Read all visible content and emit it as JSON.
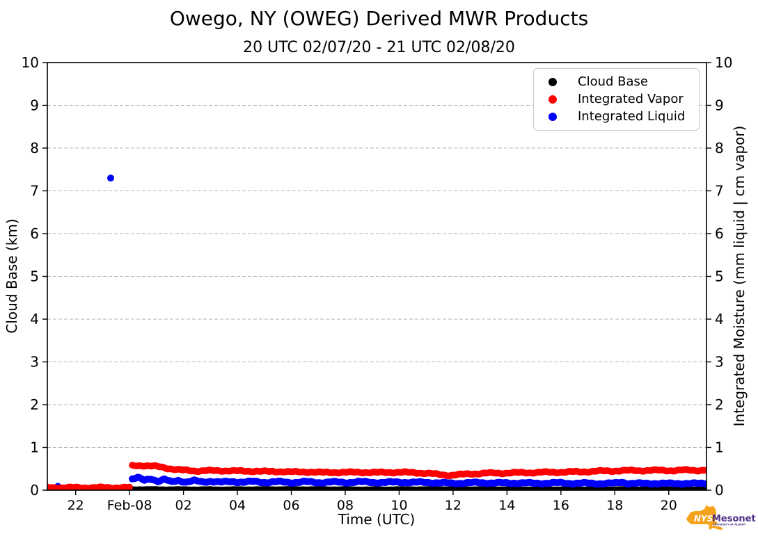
{
  "header": {
    "title": "Owego, NY (OWEG) Derived MWR Products",
    "subtitle": "20 UTC 02/07/20 - 21 UTC 02/08/20"
  },
  "axes": {
    "x": {
      "label": "Time (UTC)",
      "ticks": [
        {
          "t": -2,
          "label": "22"
        },
        {
          "t": 0,
          "label": "Feb-08"
        },
        {
          "t": 2,
          "label": "02"
        },
        {
          "t": 4,
          "label": "04"
        },
        {
          "t": 6,
          "label": "06"
        },
        {
          "t": 8,
          "label": "08"
        },
        {
          "t": 10,
          "label": "10"
        },
        {
          "t": 12,
          "label": "12"
        },
        {
          "t": 14,
          "label": "14"
        },
        {
          "t": 16,
          "label": "16"
        },
        {
          "t": 18,
          "label": "18"
        },
        {
          "t": 20,
          "label": "20"
        }
      ]
    },
    "y_left": {
      "label": "Cloud Base (km)",
      "ticks": [
        {
          "v": 0,
          "label": "0"
        },
        {
          "v": 1,
          "label": "1"
        },
        {
          "v": 2,
          "label": "2"
        },
        {
          "v": 3,
          "label": "3"
        },
        {
          "v": 4,
          "label": "4"
        },
        {
          "v": 5,
          "label": "5"
        },
        {
          "v": 6,
          "label": "6"
        },
        {
          "v": 7,
          "label": "7"
        },
        {
          "v": 8,
          "label": "8"
        },
        {
          "v": 9,
          "label": "9"
        },
        {
          "v": 10,
          "label": "10"
        }
      ]
    },
    "y_right": {
      "label": "Integrated Moisture (mm liquid | cm vapor)",
      "ticks": [
        {
          "v": 0,
          "label": "0"
        },
        {
          "v": 1,
          "label": "1"
        },
        {
          "v": 2,
          "label": "2"
        },
        {
          "v": 3,
          "label": "3"
        },
        {
          "v": 4,
          "label": "4"
        },
        {
          "v": 5,
          "label": "5"
        },
        {
          "v": 6,
          "label": "6"
        },
        {
          "v": 7,
          "label": "7"
        },
        {
          "v": 8,
          "label": "8"
        },
        {
          "v": 9,
          "label": "9"
        },
        {
          "v": 10,
          "label": "10"
        }
      ]
    }
  },
  "legend": {
    "items": [
      {
        "label": "Cloud Base",
        "color": "#000000"
      },
      {
        "label": "Integrated Vapor",
        "color": "#ff0000"
      },
      {
        "label": "Integrated Liquid",
        "color": "#0000ff"
      }
    ]
  },
  "logo": {
    "nys": "NYS",
    "mesonet": "Mesonet",
    "subtext": "UNIVERSITY AT ALBANY",
    "orange": "#f5a21c",
    "purple": "#4b2e83"
  },
  "chart_data": {
    "type": "scatter",
    "title": "Owego, NY (OWEG) Derived MWR Products",
    "subtitle": "20 UTC 02/07/20 - 21 UTC 02/08/20",
    "xlabel": "Time (UTC)",
    "ylabel_left": "Cloud Base (km)",
    "ylabel_right": "Integrated Moisture (mm liquid | cm vapor)",
    "x_unit": "hours relative to 02/08 00:00 UTC",
    "xlim": [
      -3.05,
      21.4
    ],
    "ylim": [
      0,
      10
    ],
    "grid": "horizontal dashed gridlines at integer values",
    "legend_position": "upper right",
    "series": [
      {
        "name": "Cloud Base",
        "color": "#000000",
        "marker_r": 3.5,
        "draw_order": 1,
        "points": [],
        "segments": [
          [
            [
              0.0,
              0.035
            ],
            [
              3,
              0.03
            ],
            [
              6,
              0.035
            ],
            [
              9,
              0.03
            ],
            [
              12,
              0.035
            ],
            [
              15,
              0.03
            ],
            [
              18,
              0.032
            ],
            [
              21.35,
              0.03
            ]
          ]
        ]
      },
      {
        "name": "Integrated Vapor",
        "color": "#ff0000",
        "marker_r": 4.8,
        "draw_order": 3,
        "points": [],
        "segments": [
          [
            [
              -3.03,
              0.06
            ],
            [
              0.0,
              0.06
            ]
          ],
          [
            [
              0.1,
              0.57
            ],
            [
              0.45,
              0.58
            ],
            [
              0.8,
              0.565
            ],
            [
              1.1,
              0.545
            ],
            [
              1.4,
              0.515
            ],
            [
              1.7,
              0.49
            ],
            [
              2.0,
              0.465
            ],
            [
              2.4,
              0.45
            ],
            [
              2.8,
              0.46
            ],
            [
              3.2,
              0.45
            ],
            [
              3.7,
              0.46
            ],
            [
              4.2,
              0.44
            ],
            [
              4.7,
              0.45
            ],
            [
              5.2,
              0.43
            ],
            [
              5.7,
              0.44
            ],
            [
              6.2,
              0.42
            ],
            [
              6.7,
              0.43
            ],
            [
              7.2,
              0.41
            ],
            [
              7.7,
              0.42
            ],
            [
              8.2,
              0.415
            ],
            [
              8.7,
              0.42
            ],
            [
              9.2,
              0.41
            ],
            [
              9.7,
              0.42
            ],
            [
              10.2,
              0.415
            ],
            [
              10.7,
              0.41
            ],
            [
              11.1,
              0.39
            ],
            [
              11.5,
              0.365
            ],
            [
              11.9,
              0.35
            ],
            [
              12.3,
              0.365
            ],
            [
              12.7,
              0.385
            ],
            [
              13.2,
              0.395
            ],
            [
              13.7,
              0.4
            ],
            [
              14.2,
              0.405
            ],
            [
              14.7,
              0.41
            ],
            [
              15.2,
              0.415
            ],
            [
              15.7,
              0.42
            ],
            [
              16.2,
              0.425
            ],
            [
              16.7,
              0.43
            ],
            [
              17.2,
              0.44
            ],
            [
              17.7,
              0.45
            ],
            [
              18.2,
              0.455
            ],
            [
              18.7,
              0.46
            ],
            [
              19.2,
              0.46
            ],
            [
              19.7,
              0.465
            ],
            [
              20.2,
              0.46
            ],
            [
              20.7,
              0.47
            ],
            [
              21.1,
              0.465
            ],
            [
              21.35,
              0.47
            ]
          ]
        ]
      },
      {
        "name": "Integrated Liquid",
        "color": "#0000ff",
        "marker_r": 5,
        "draw_order": 2,
        "points": [
          [
            -2.66,
            0.09
          ],
          [
            -0.7,
            7.3
          ]
        ],
        "segments": [
          [
            [
              0.1,
              0.26
            ],
            [
              0.3,
              0.29
            ],
            [
              0.55,
              0.23
            ],
            [
              0.8,
              0.27
            ],
            [
              1.05,
              0.21
            ],
            [
              1.3,
              0.25
            ],
            [
              1.55,
              0.19
            ],
            [
              1.8,
              0.23
            ],
            [
              2.1,
              0.19
            ],
            [
              2.4,
              0.22
            ],
            [
              2.7,
              0.19
            ],
            [
              3.0,
              0.21
            ],
            [
              3.4,
              0.185
            ],
            [
              3.8,
              0.2
            ],
            [
              4.2,
              0.19
            ],
            [
              4.6,
              0.2
            ],
            [
              5.0,
              0.185
            ],
            [
              5.5,
              0.195
            ],
            [
              6.0,
              0.18
            ],
            [
              6.5,
              0.195
            ],
            [
              7.0,
              0.18
            ],
            [
              7.5,
              0.19
            ],
            [
              8.0,
              0.18
            ],
            [
              8.5,
              0.195
            ],
            [
              9.0,
              0.185
            ],
            [
              9.5,
              0.18
            ],
            [
              10.0,
              0.19
            ],
            [
              10.5,
              0.18
            ],
            [
              11.0,
              0.185
            ],
            [
              11.5,
              0.17
            ],
            [
              12.0,
              0.16
            ],
            [
              12.5,
              0.17
            ],
            [
              13.0,
              0.175
            ],
            [
              13.5,
              0.17
            ],
            [
              14.0,
              0.165
            ],
            [
              14.5,
              0.17
            ],
            [
              15.0,
              0.16
            ],
            [
              15.5,
              0.165
            ],
            [
              16.0,
              0.17
            ],
            [
              16.5,
              0.16
            ],
            [
              17.0,
              0.162
            ],
            [
              17.5,
              0.155
            ],
            [
              18.0,
              0.16
            ],
            [
              18.25,
              0.19
            ],
            [
              18.5,
              0.16
            ],
            [
              19.0,
              0.155
            ],
            [
              19.5,
              0.16
            ],
            [
              20.0,
              0.152
            ],
            [
              20.5,
              0.16
            ],
            [
              21.0,
              0.153
            ],
            [
              21.35,
              0.158
            ]
          ]
        ]
      }
    ]
  }
}
